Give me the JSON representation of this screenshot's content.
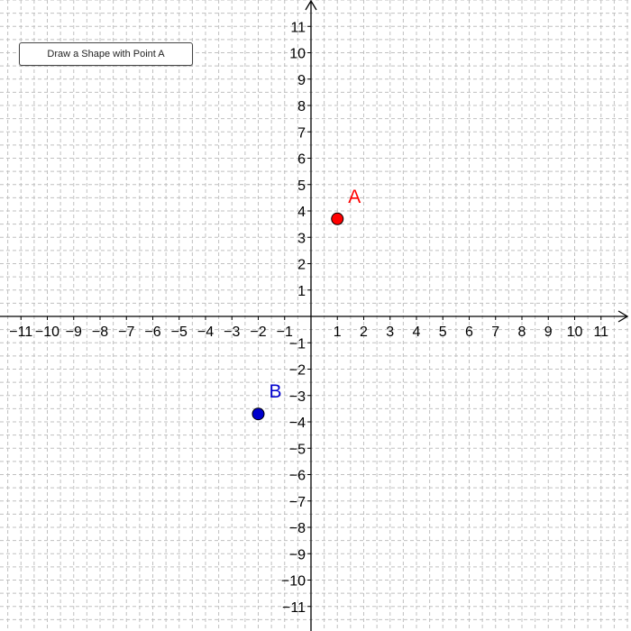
{
  "button": {
    "label": "Draw a Shape with Point A"
  },
  "axes": {
    "x_range": [
      -11,
      11
    ],
    "y_range": [
      -11,
      11
    ],
    "x_ticks": [
      "−11",
      "−10",
      "−9",
      "−8",
      "−7",
      "−6",
      "−5",
      "−4",
      "−3",
      "−2",
      "−1",
      "1",
      "2",
      "3",
      "4",
      "5",
      "6",
      "7",
      "8",
      "9",
      "10",
      "11"
    ],
    "y_ticks": [
      "11",
      "10",
      "9",
      "8",
      "7",
      "6",
      "5",
      "4",
      "3",
      "2",
      "1",
      "−1",
      "−2",
      "−3",
      "−4",
      "−5",
      "−6",
      "−7",
      "−8",
      "−9",
      "−10",
      "−11"
    ],
    "grid": true,
    "grid_color": "#c0c0c0",
    "axis_color": "#000000"
  },
  "points": [
    {
      "name": "A",
      "x": 1,
      "y": 3.7,
      "color": "#ff0000"
    },
    {
      "name": "B",
      "x": -2,
      "y": -3.7,
      "color": "#0000cc"
    }
  ]
}
